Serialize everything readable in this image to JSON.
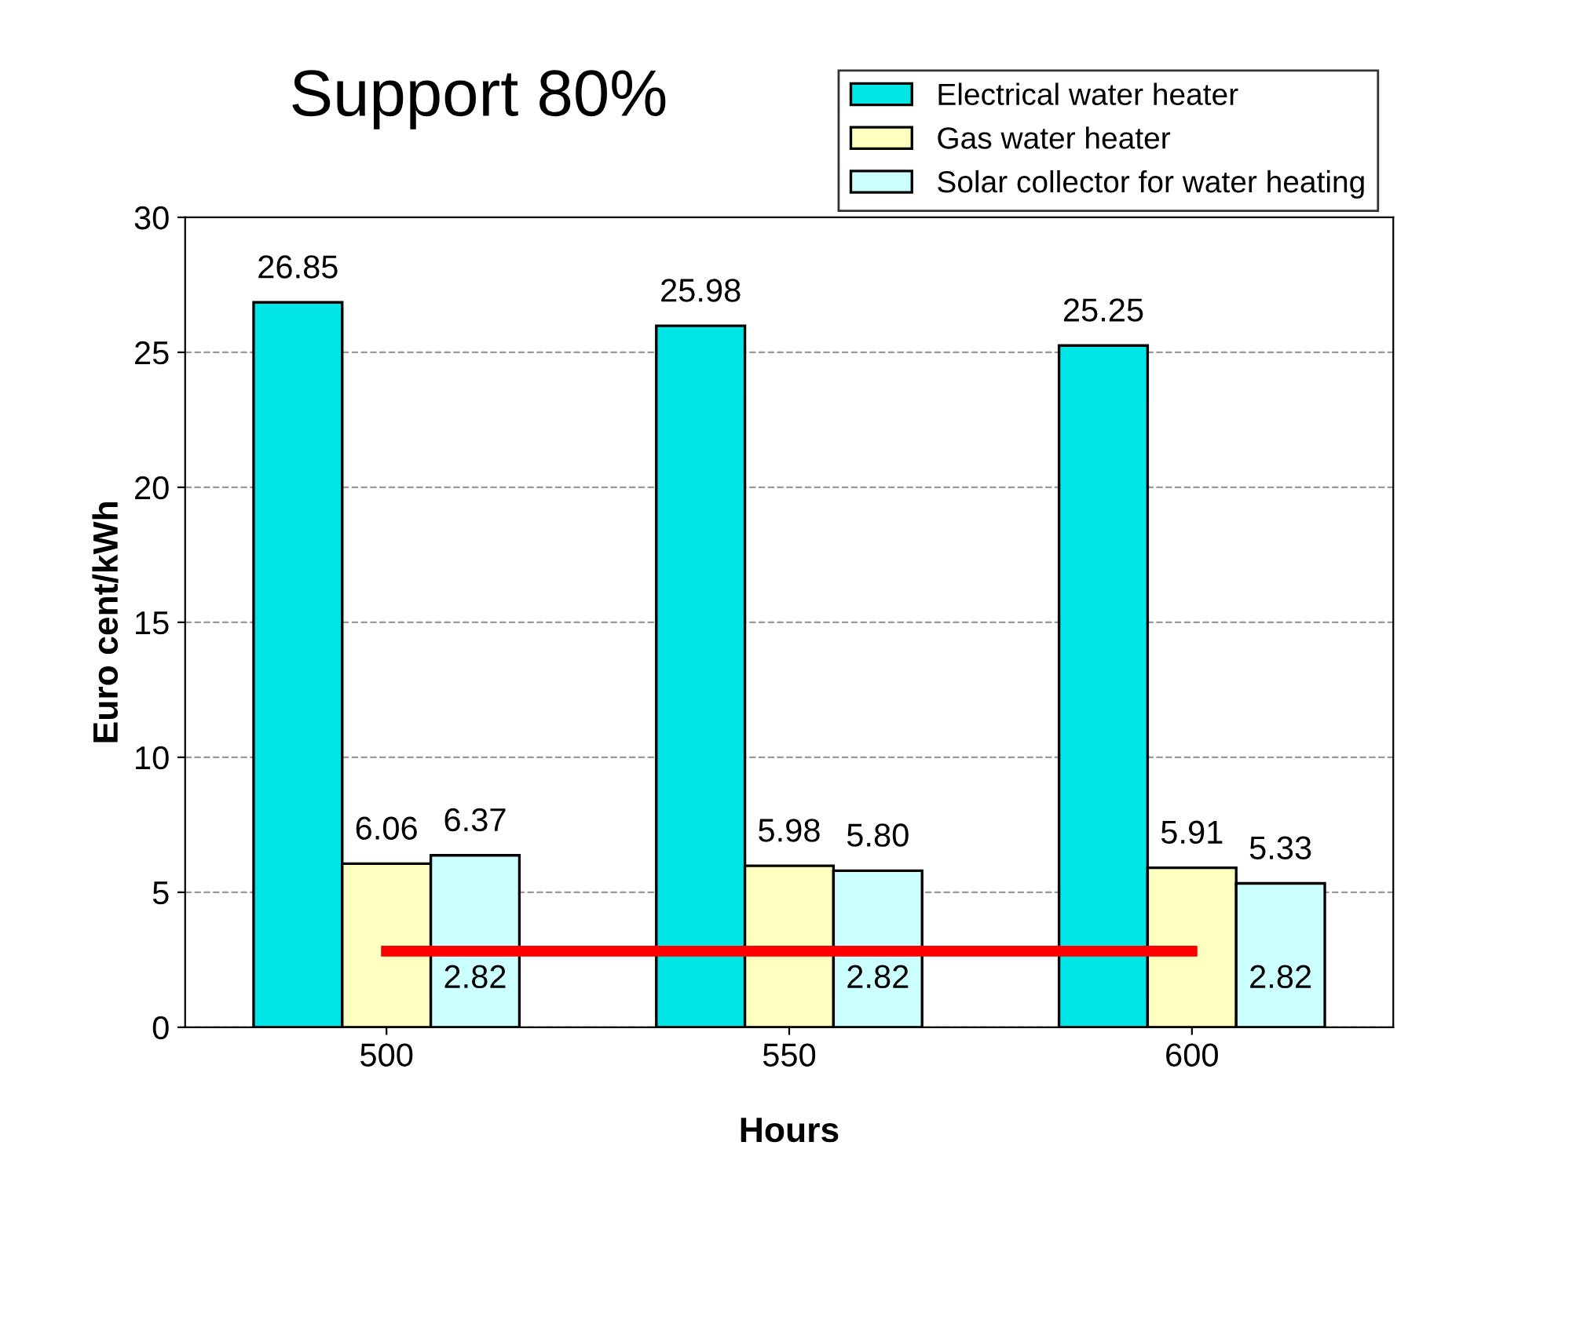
{
  "chart_data": {
    "type": "bar",
    "title": "Support 80%",
    "xlabel": "Hours",
    "ylabel": "Euro cent/kWh",
    "categories": [
      "500",
      "550",
      "600"
    ],
    "series": [
      {
        "name": "Electrical water heater",
        "color": "#00e5e5",
        "values": [
          26.85,
          25.98,
          25.25
        ],
        "value_labels": [
          "26.85",
          "25.98",
          "25.25"
        ]
      },
      {
        "name": "Gas water heater",
        "color": "#ffffc0",
        "values": [
          6.06,
          5.98,
          5.91
        ],
        "value_labels": [
          "6.06",
          "5.98",
          "5.91"
        ]
      },
      {
        "name": "Solar collector for water heating",
        "color": "#ccffff",
        "values": [
          6.37,
          5.8,
          5.33
        ],
        "value_labels": [
          "6.37",
          "5.80",
          "5.33"
        ]
      },
      {
        "type": "line",
        "color": "#ff0000",
        "values": [
          2.82,
          2.82,
          2.82
        ],
        "value_labels": [
          "2.82",
          "2.82",
          "2.82"
        ]
      }
    ],
    "ylim": [
      0,
      30
    ],
    "yticks": [
      0,
      5,
      10,
      15,
      20,
      25,
      30
    ],
    "grid": "y",
    "legend": "top right",
    "marker": "none",
    "line_style": "solid"
  }
}
